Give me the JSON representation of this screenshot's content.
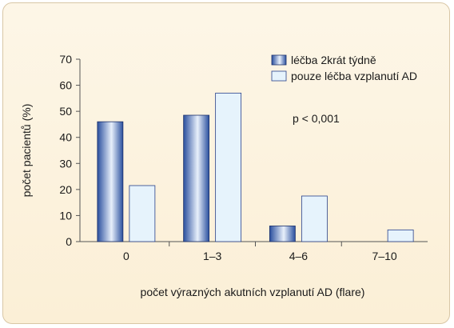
{
  "chart_data": {
    "type": "bar",
    "categories": [
      "0",
      "1–3",
      "4–6",
      "7–10"
    ],
    "series": [
      {
        "name": "léčba 2krát týdně",
        "values": [
          46,
          48.5,
          6,
          0
        ]
      },
      {
        "name": "pouze léčba vzplanutí AD",
        "values": [
          21.5,
          57,
          17.5,
          4.5
        ]
      }
    ],
    "ylim": [
      0,
      70
    ],
    "yticks": [
      "0",
      "10",
      "20",
      "30",
      "40",
      "50",
      "60",
      "70"
    ],
    "xlabel": "počet výrazných akutních vzplanutí AD (flare)",
    "ylabel": "počet pacientů (%)",
    "annotation": "p < 0,001",
    "grid": false,
    "legend_position": "top-right",
    "colors": {
      "series1_dark": "#2a4f9e",
      "series1_light": "#e8f0fb",
      "series2_fill": "#e6f3fc",
      "series2_stroke": "#27408a",
      "background": "#fcf3df",
      "frame_border": "#d9c7a6"
    }
  }
}
